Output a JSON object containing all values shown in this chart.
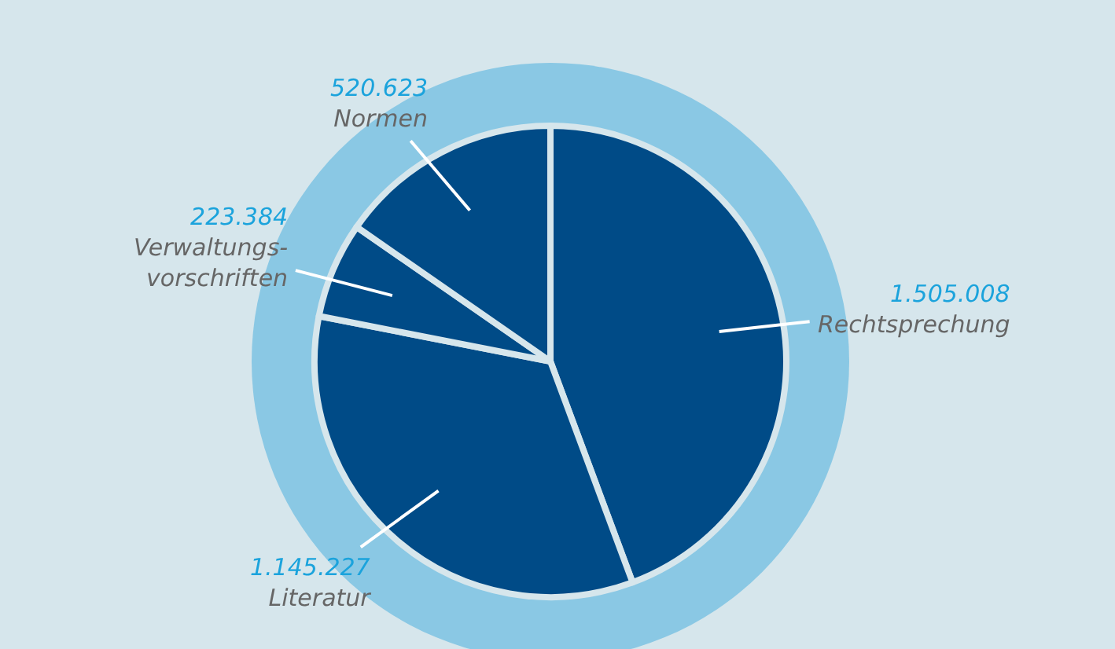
{
  "chart_data": {
    "type": "pie",
    "categories": [
      "Rechtsprechung",
      "Literatur",
      "Verwaltungs-\nvorschriften",
      "Normen"
    ],
    "values": [
      1505008,
      1145227,
      223384,
      520623
    ],
    "value_labels": [
      "1.505.008",
      "1.145.227",
      "223.384",
      "520.623"
    ],
    "colors": [
      "#004b87",
      "#004b87",
      "#004b87",
      "#004b87"
    ],
    "legend": false
  }
}
